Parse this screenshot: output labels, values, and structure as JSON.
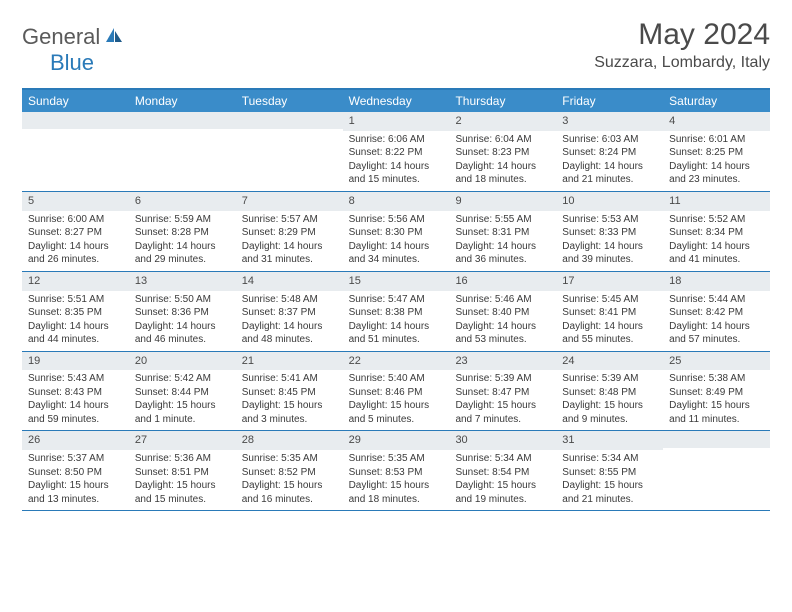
{
  "logo": {
    "text1": "General",
    "text2": "Blue"
  },
  "title": "May 2024",
  "location": "Suzzara, Lombardy, Italy",
  "colors": {
    "header_bg": "#3a8cc9",
    "border": "#2a7ab8",
    "daynum_bg": "#e8ecef",
    "text": "#3a3a3a",
    "title_text": "#4a4a4a",
    "logo_gray": "#5a5a5a",
    "logo_blue": "#2a7ab8",
    "white": "#ffffff"
  },
  "weekdays": [
    "Sunday",
    "Monday",
    "Tuesday",
    "Wednesday",
    "Thursday",
    "Friday",
    "Saturday"
  ],
  "weeks": [
    [
      null,
      null,
      null,
      {
        "n": "1",
        "sunrise": "6:06 AM",
        "sunset": "8:22 PM",
        "daylight": "14 hours and 15 minutes."
      },
      {
        "n": "2",
        "sunrise": "6:04 AM",
        "sunset": "8:23 PM",
        "daylight": "14 hours and 18 minutes."
      },
      {
        "n": "3",
        "sunrise": "6:03 AM",
        "sunset": "8:24 PM",
        "daylight": "14 hours and 21 minutes."
      },
      {
        "n": "4",
        "sunrise": "6:01 AM",
        "sunset": "8:25 PM",
        "daylight": "14 hours and 23 minutes."
      }
    ],
    [
      {
        "n": "5",
        "sunrise": "6:00 AM",
        "sunset": "8:27 PM",
        "daylight": "14 hours and 26 minutes."
      },
      {
        "n": "6",
        "sunrise": "5:59 AM",
        "sunset": "8:28 PM",
        "daylight": "14 hours and 29 minutes."
      },
      {
        "n": "7",
        "sunrise": "5:57 AM",
        "sunset": "8:29 PM",
        "daylight": "14 hours and 31 minutes."
      },
      {
        "n": "8",
        "sunrise": "5:56 AM",
        "sunset": "8:30 PM",
        "daylight": "14 hours and 34 minutes."
      },
      {
        "n": "9",
        "sunrise": "5:55 AM",
        "sunset": "8:31 PM",
        "daylight": "14 hours and 36 minutes."
      },
      {
        "n": "10",
        "sunrise": "5:53 AM",
        "sunset": "8:33 PM",
        "daylight": "14 hours and 39 minutes."
      },
      {
        "n": "11",
        "sunrise": "5:52 AM",
        "sunset": "8:34 PM",
        "daylight": "14 hours and 41 minutes."
      }
    ],
    [
      {
        "n": "12",
        "sunrise": "5:51 AM",
        "sunset": "8:35 PM",
        "daylight": "14 hours and 44 minutes."
      },
      {
        "n": "13",
        "sunrise": "5:50 AM",
        "sunset": "8:36 PM",
        "daylight": "14 hours and 46 minutes."
      },
      {
        "n": "14",
        "sunrise": "5:48 AM",
        "sunset": "8:37 PM",
        "daylight": "14 hours and 48 minutes."
      },
      {
        "n": "15",
        "sunrise": "5:47 AM",
        "sunset": "8:38 PM",
        "daylight": "14 hours and 51 minutes."
      },
      {
        "n": "16",
        "sunrise": "5:46 AM",
        "sunset": "8:40 PM",
        "daylight": "14 hours and 53 minutes."
      },
      {
        "n": "17",
        "sunrise": "5:45 AM",
        "sunset": "8:41 PM",
        "daylight": "14 hours and 55 minutes."
      },
      {
        "n": "18",
        "sunrise": "5:44 AM",
        "sunset": "8:42 PM",
        "daylight": "14 hours and 57 minutes."
      }
    ],
    [
      {
        "n": "19",
        "sunrise": "5:43 AM",
        "sunset": "8:43 PM",
        "daylight": "14 hours and 59 minutes."
      },
      {
        "n": "20",
        "sunrise": "5:42 AM",
        "sunset": "8:44 PM",
        "daylight": "15 hours and 1 minute."
      },
      {
        "n": "21",
        "sunrise": "5:41 AM",
        "sunset": "8:45 PM",
        "daylight": "15 hours and 3 minutes."
      },
      {
        "n": "22",
        "sunrise": "5:40 AM",
        "sunset": "8:46 PM",
        "daylight": "15 hours and 5 minutes."
      },
      {
        "n": "23",
        "sunrise": "5:39 AM",
        "sunset": "8:47 PM",
        "daylight": "15 hours and 7 minutes."
      },
      {
        "n": "24",
        "sunrise": "5:39 AM",
        "sunset": "8:48 PM",
        "daylight": "15 hours and 9 minutes."
      },
      {
        "n": "25",
        "sunrise": "5:38 AM",
        "sunset": "8:49 PM",
        "daylight": "15 hours and 11 minutes."
      }
    ],
    [
      {
        "n": "26",
        "sunrise": "5:37 AM",
        "sunset": "8:50 PM",
        "daylight": "15 hours and 13 minutes."
      },
      {
        "n": "27",
        "sunrise": "5:36 AM",
        "sunset": "8:51 PM",
        "daylight": "15 hours and 15 minutes."
      },
      {
        "n": "28",
        "sunrise": "5:35 AM",
        "sunset": "8:52 PM",
        "daylight": "15 hours and 16 minutes."
      },
      {
        "n": "29",
        "sunrise": "5:35 AM",
        "sunset": "8:53 PM",
        "daylight": "15 hours and 18 minutes."
      },
      {
        "n": "30",
        "sunrise": "5:34 AM",
        "sunset": "8:54 PM",
        "daylight": "15 hours and 19 minutes."
      },
      {
        "n": "31",
        "sunrise": "5:34 AM",
        "sunset": "8:55 PM",
        "daylight": "15 hours and 21 minutes."
      },
      null
    ]
  ],
  "labels": {
    "sunrise": "Sunrise:",
    "sunset": "Sunset:",
    "daylight": "Daylight:"
  }
}
